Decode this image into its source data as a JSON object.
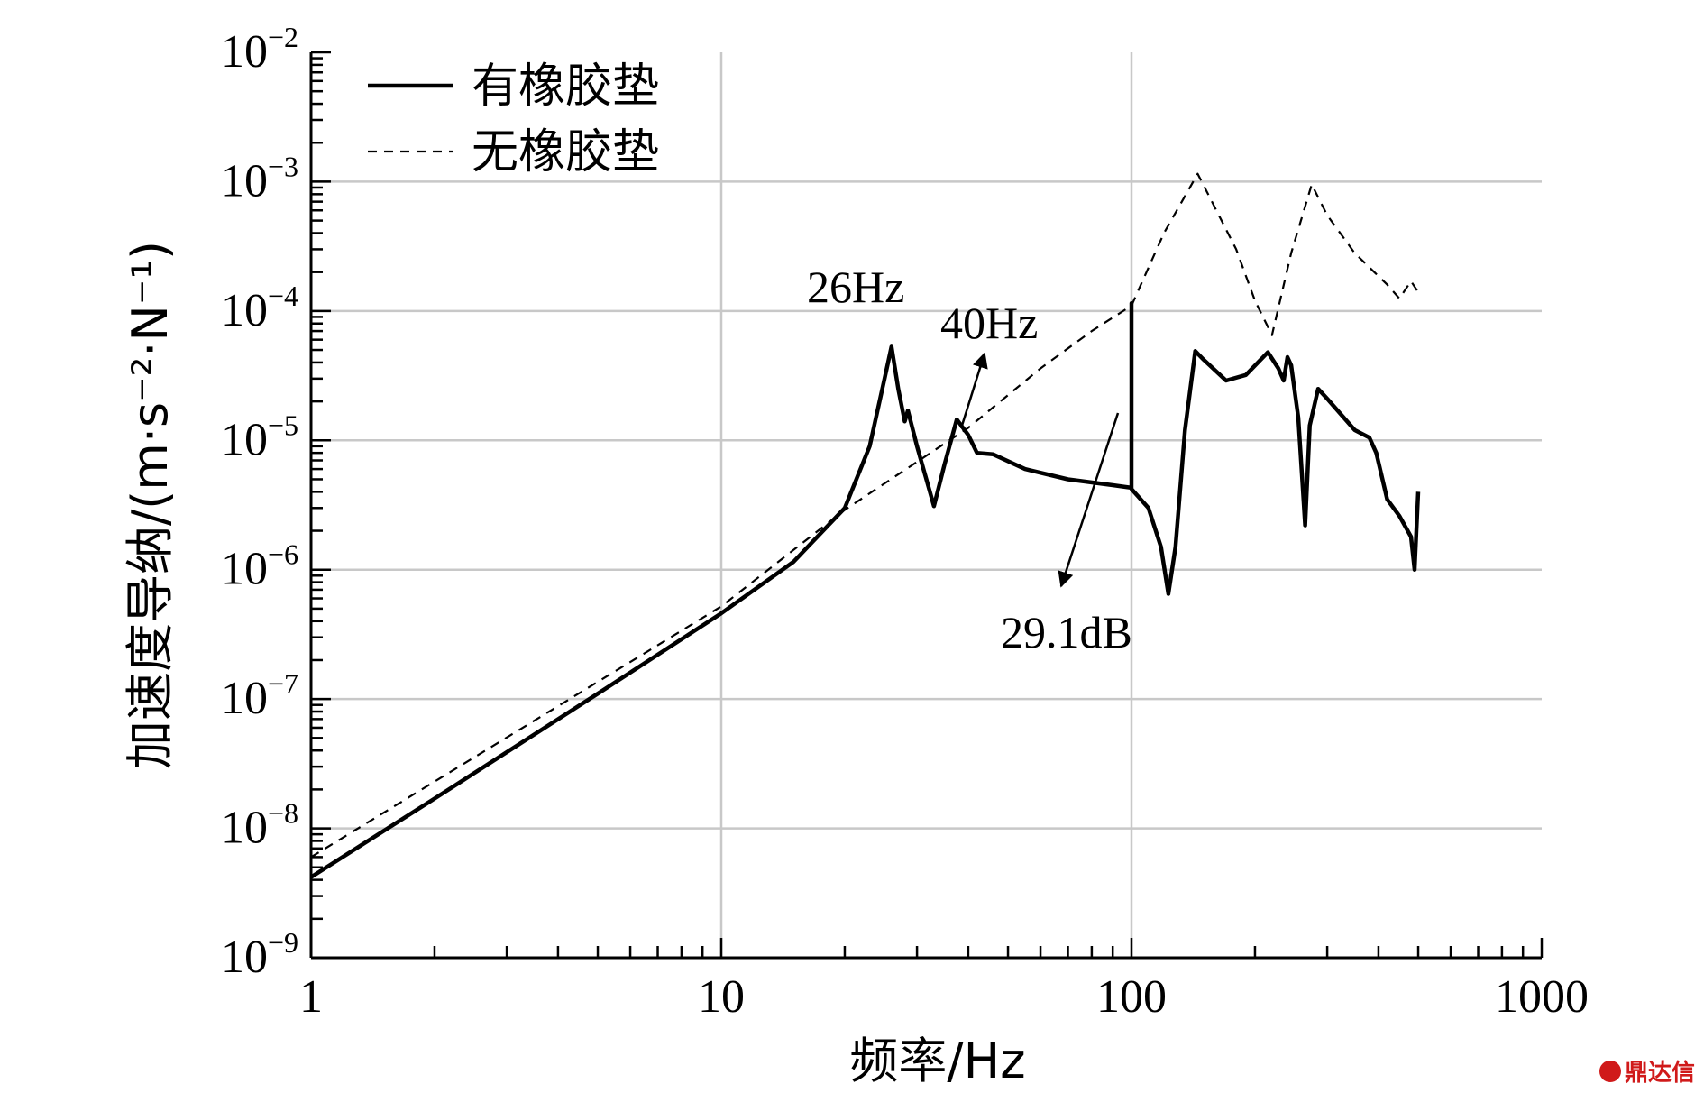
{
  "chart_data": {
    "type": "line",
    "xlabel": "频率/Hz",
    "ylabel": "加速度导纳/(m·s⁻²·N⁻¹)",
    "xscale": "log",
    "yscale": "log",
    "xlim": [
      1,
      1000
    ],
    "ylim": [
      1e-09,
      0.01
    ],
    "x_ticks": [
      {
        "value": 1,
        "label": "1"
      },
      {
        "value": 10,
        "label": "10"
      },
      {
        "value": 100,
        "label": "100"
      },
      {
        "value": 1000,
        "label": "1000"
      }
    ],
    "y_ticks": [
      {
        "value": 1e-09,
        "base": "10",
        "exp": "−9"
      },
      {
        "value": 1e-08,
        "base": "10",
        "exp": "−8"
      },
      {
        "value": 1e-07,
        "base": "10",
        "exp": "−7"
      },
      {
        "value": 1e-06,
        "base": "10",
        "exp": "−6"
      },
      {
        "value": 1e-05,
        "base": "10",
        "exp": "−5"
      },
      {
        "value": 0.0001,
        "base": "10",
        "exp": "−4"
      },
      {
        "value": 0.001,
        "base": "10",
        "exp": "−3"
      },
      {
        "value": 0.01,
        "base": "10",
        "exp": "−2"
      }
    ],
    "grid": true,
    "legend_position": "top-left",
    "series": [
      {
        "name": "有橡胶垫",
        "style": "solid",
        "points": [
          [
            1,
            4.2e-09
          ],
          [
            2,
            1.7e-08
          ],
          [
            5,
            1.1e-07
          ],
          [
            10,
            4.6e-07
          ],
          [
            15,
            1.15e-06
          ],
          [
            20,
            3e-06
          ],
          [
            23,
            9e-06
          ],
          [
            25,
            3e-05
          ],
          [
            26,
            5.3e-05
          ],
          [
            27,
            2.5e-05
          ],
          [
            28,
            1.4e-05
          ],
          [
            28.5,
            1.7e-05
          ],
          [
            30,
            9e-06
          ],
          [
            33,
            3.1e-06
          ],
          [
            35,
            6.5e-06
          ],
          [
            37.5,
            1.45e-05
          ],
          [
            40,
            1.1e-05
          ],
          [
            42,
            8e-06
          ],
          [
            46,
            7.8e-06
          ],
          [
            55,
            6e-06
          ],
          [
            70,
            5e-06
          ],
          [
            90,
            4.5e-06
          ],
          [
            100,
            4.3e-06
          ],
          [
            100,
            0.000115
          ],
          [
            100,
            4.2e-06
          ],
          [
            110,
            3e-06
          ],
          [
            118,
            1.5e-06
          ],
          [
            123,
            6.5e-07
          ],
          [
            128,
            1.5e-06
          ],
          [
            135,
            1.2e-05
          ],
          [
            143,
            4.9e-05
          ],
          [
            150,
            4.2e-05
          ],
          [
            170,
            2.9e-05
          ],
          [
            190,
            3.2e-05
          ],
          [
            215,
            4.8e-05
          ],
          [
            228,
            3.6e-05
          ],
          [
            235,
            2.9e-05
          ],
          [
            240,
            4.4e-05
          ],
          [
            245,
            3.8e-05
          ],
          [
            255,
            1.5e-05
          ],
          [
            265,
            2.2e-06
          ],
          [
            272,
            1.3e-05
          ],
          [
            285,
            2.5e-05
          ],
          [
            300,
            2.1e-05
          ],
          [
            350,
            1.2e-05
          ],
          [
            380,
            1.05e-05
          ],
          [
            395,
            8e-06
          ],
          [
            420,
            3.5e-06
          ],
          [
            450,
            2.6e-06
          ],
          [
            480,
            1.8e-06
          ],
          [
            490,
            1e-06
          ],
          [
            500,
            4e-06
          ]
        ]
      },
      {
        "name": "无橡胶垫",
        "style": "dashed",
        "points": [
          [
            1,
            6e-09
          ],
          [
            10,
            5.2e-07
          ],
          [
            20,
            2.9e-06
          ],
          [
            40,
            1.25e-05
          ],
          [
            60,
            3.6e-05
          ],
          [
            80,
            7e-05
          ],
          [
            100,
            0.00011
          ],
          [
            120,
            0.0004
          ],
          [
            145,
            0.00115
          ],
          [
            180,
            0.0003
          ],
          [
            200,
            0.00012
          ],
          [
            220,
            6.5e-05
          ],
          [
            245,
            0.00028
          ],
          [
            275,
            0.00095
          ],
          [
            300,
            0.00055
          ],
          [
            350,
            0.00028
          ],
          [
            420,
            0.00016
          ],
          [
            450,
            0.000125
          ],
          [
            480,
            0.00017
          ],
          [
            500,
            0.00014
          ]
        ]
      }
    ],
    "annotations": [
      {
        "text": "26Hz"
      },
      {
        "text": "40Hz"
      },
      {
        "text": "29.1dB"
      }
    ]
  },
  "watermark": "鼎达信"
}
